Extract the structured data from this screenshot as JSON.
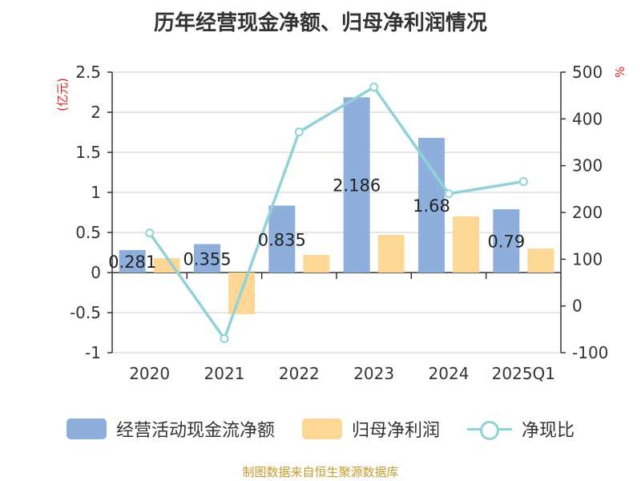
{
  "chart_data": {
    "type": "bar",
    "title": "历年经营现金净额、归母净利润情况",
    "categories": [
      "2020",
      "2021",
      "2022",
      "2023",
      "2024",
      "2025Q1"
    ],
    "series": [
      {
        "name": "经营活动现金流净额",
        "type": "bar",
        "axis": "left",
        "color": "#8eaedb",
        "values": [
          0.281,
          0.355,
          0.835,
          2.186,
          1.68,
          0.79
        ],
        "labels": [
          "0.281",
          "0.355",
          "0.835",
          "2.186",
          "1.68",
          "0.79"
        ]
      },
      {
        "name": "归母净利润",
        "type": "bar",
        "axis": "left",
        "color": "#fdd795",
        "values": [
          0.18,
          -0.52,
          0.22,
          0.47,
          0.7,
          0.3
        ]
      },
      {
        "name": "净现比",
        "type": "line",
        "axis": "right",
        "color": "#8fd3d8",
        "values": [
          156,
          -70,
          372,
          468,
          240,
          266
        ]
      }
    ],
    "left_axis": {
      "label": "(亿元)",
      "min": -1,
      "max": 2.5,
      "ticks": [
        2.5,
        2,
        1.5,
        1,
        0.5,
        0,
        -0.5,
        -1
      ],
      "tick_labels": [
        "2.5",
        "2",
        "1.5",
        "1",
        "0.5",
        "0",
        "-0.5",
        "-1"
      ]
    },
    "right_axis": {
      "label": "%",
      "min": -100,
      "max": 500,
      "ticks": [
        500,
        400,
        300,
        200,
        100,
        0,
        -100
      ],
      "tick_labels": [
        "500",
        "400",
        "300",
        "200",
        "100",
        "0",
        "-100"
      ]
    },
    "grid": true,
    "legend_position": "bottom"
  },
  "legend": {
    "items": [
      {
        "label": "经营活动现金流净额",
        "color": "#8eaedb",
        "kind": "bar"
      },
      {
        "label": "归母净利润",
        "color": "#fdd795",
        "kind": "bar"
      },
      {
        "label": "净现比",
        "color": "#8fd3d8",
        "kind": "line"
      }
    ]
  },
  "source": "制图数据来自恒生聚源数据库"
}
